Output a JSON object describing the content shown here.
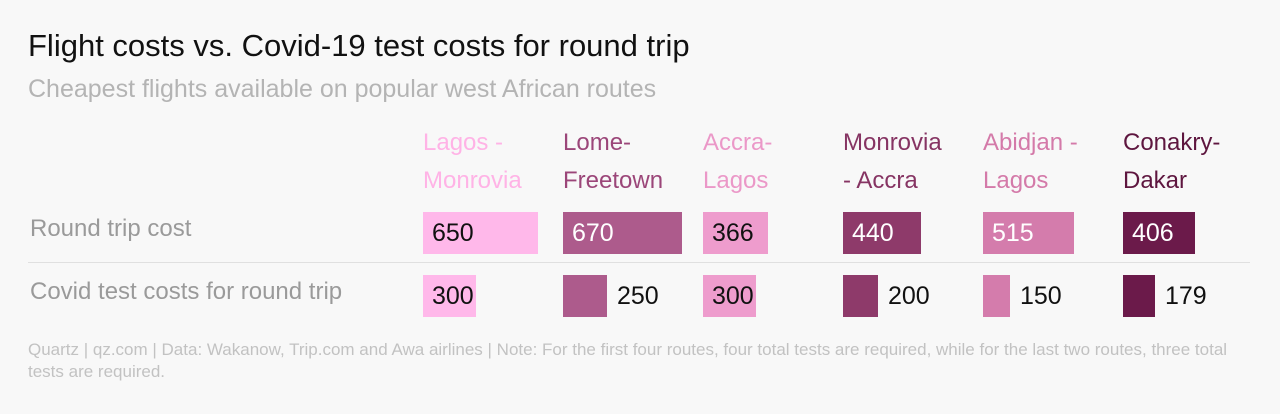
{
  "title": "Flight costs vs. Covid-19 test costs for round trip",
  "subtitle": "Cheapest flights available on popular west African routes",
  "footer": "Quartz | qz.com | Data: Wakanow, Trip.com and Awa airlines | Note: For the first four routes, four total tests are required, while for the last two routes, three total tests are required.",
  "chart_data": {
    "type": "bar",
    "categories": [
      {
        "line1": "Lagos -",
        "line2": "Monrovia",
        "color": "#ffb8ea",
        "label_color": "#ffb3e6"
      },
      {
        "line1": "Lome-",
        "line2": "Freetown",
        "color": "#ad5b8c",
        "label_color": "#9b4679"
      },
      {
        "line1": "Accra-",
        "line2": "Lagos",
        "color": "#ee9ccd",
        "label_color": "#eb98c8"
      },
      {
        "line1": "Monrovia",
        "line2": "- Accra",
        "color": "#8e3a6a",
        "label_color": "#863463"
      },
      {
        "line1": "Abidjan -",
        "line2": "Lagos",
        "color": "#d47cac",
        "label_color": "#d47aa9"
      },
      {
        "line1": "Conakry-",
        "line2": "Dakar",
        "color": "#6b1a4a",
        "label_color": "#5e163f"
      }
    ],
    "series": [
      {
        "name": "Round trip cost",
        "values": [
          650,
          670,
          366,
          440,
          515,
          406
        ]
      },
      {
        "name": "Covid test costs for round trip",
        "values": [
          300,
          250,
          300,
          200,
          150,
          179
        ]
      }
    ]
  }
}
